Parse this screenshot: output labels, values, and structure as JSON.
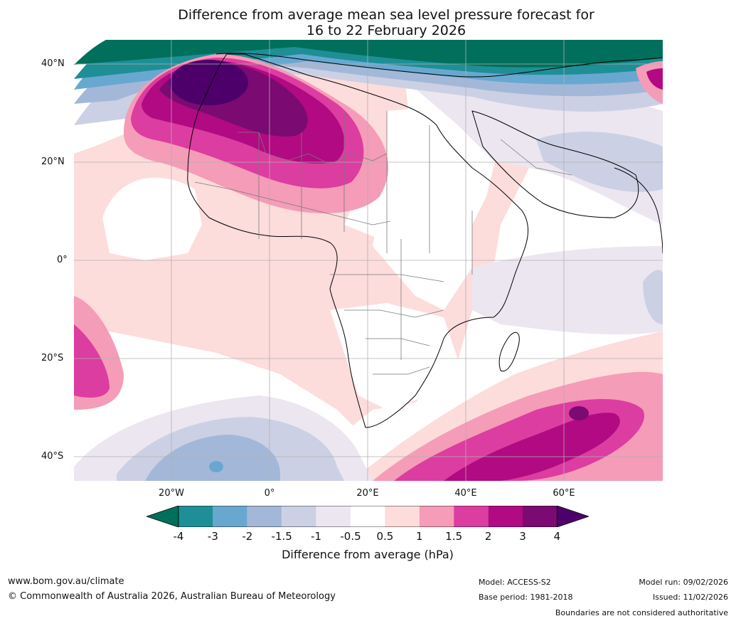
{
  "title": {
    "line1": "Difference from average mean sea level pressure forecast for",
    "line2": "16 to 22 February 2026"
  },
  "map": {
    "lat_labels": [
      "40°N",
      "20°N",
      "0°",
      "20°S",
      "40°S"
    ],
    "lon_labels": [
      "20°W",
      "0°",
      "20°E",
      "40°E",
      "60°E"
    ]
  },
  "colorbar": {
    "tick_labels": [
      "-4",
      "-3",
      "-2",
      "-1.5",
      "-1",
      "-0.5",
      "0.5",
      "1",
      "1.5",
      "2",
      "3",
      "4"
    ],
    "colors": [
      "#006f5b",
      "#1e8f96",
      "#68a8d0",
      "#a3b8d8",
      "#ccd0e4",
      "#ece6f1",
      "#ffffff",
      "#fddcdc",
      "#f59cb8",
      "#dc3da0",
      "#b10a82",
      "#7b0a72",
      "#4d006a"
    ],
    "label": "Difference from average (hPa)"
  },
  "footer": {
    "website": "www.bom.gov.au/climate",
    "copyright": "© Commonwealth of Australia 2026, Australian Bureau of Meteorology",
    "model": "Model: ACCESS-S2",
    "base_period": "Base period: 1981-2018",
    "model_run": "Model run: 09/02/2026",
    "issued": "Issued: 11/02/2026",
    "disclaimer": "Boundaries are not considered authoritative"
  }
}
